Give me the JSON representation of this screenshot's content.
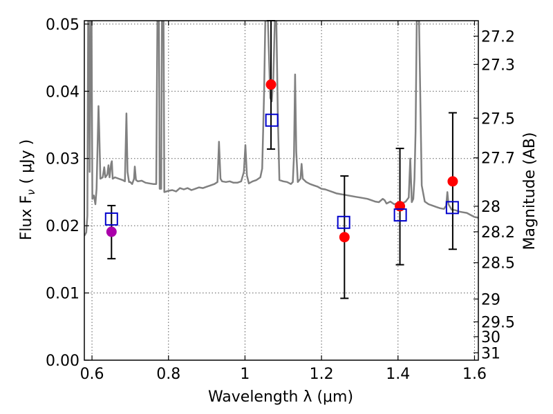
{
  "chart_data": {
    "type": "scatter",
    "xlabel": "Wavelength  λ (μm)",
    "ylabel": "Flux  F",
    "ylabel_sub": "ν",
    "ylabel_unit": "( μJy )",
    "y2label": "Magnitude (AB)",
    "xlim": [
      0.58,
      1.61
    ],
    "ylim": [
      0.0,
      0.0505
    ],
    "grid": true,
    "colors": {
      "spectrum": "#808080",
      "model_point": "#0000cc",
      "observed_point": "#ff0000",
      "first_observed_point": "#aa00aa",
      "errorbar": "#000000"
    },
    "x_ticks": [
      {
        "value": 0.6,
        "label": "0.6"
      },
      {
        "value": 0.8,
        "label": "0.8"
      },
      {
        "value": 1.0,
        "label": "1"
      },
      {
        "value": 1.2,
        "label": "1.2"
      },
      {
        "value": 1.4,
        "label": "1.4"
      },
      {
        "value": 1.6,
        "label": "1.6"
      }
    ],
    "y_ticks": [
      {
        "value": 0.0,
        "label": "0.00"
      },
      {
        "value": 0.01,
        "label": "0.01"
      },
      {
        "value": 0.02,
        "label": "0.02"
      },
      {
        "value": 0.03,
        "label": "0.03"
      },
      {
        "value": 0.04,
        "label": "0.04"
      },
      {
        "value": 0.05,
        "label": "0.05"
      }
    ],
    "y2_ticks": [
      {
        "label": "27.2",
        "flux": 0.0482
      },
      {
        "label": "27.3",
        "flux": 0.044
      },
      {
        "label": "27.5",
        "flux": 0.036
      },
      {
        "label": "27.7",
        "flux": 0.0301
      },
      {
        "label": "28",
        "flux": 0.0229
      },
      {
        "label": "28.2",
        "flux": 0.0191
      },
      {
        "label": "28.5",
        "flux": 0.0145
      },
      {
        "label": "29",
        "flux": 0.0091
      },
      {
        "label": "29.5",
        "flux": 0.0057
      },
      {
        "label": "30",
        "flux": 0.0035
      },
      {
        "label": "31",
        "flux": 0.0011
      }
    ],
    "model_points": [
      {
        "x": 0.651,
        "y": 0.021
      },
      {
        "x": 1.07,
        "y": 0.0357
      },
      {
        "x": 1.258,
        "y": 0.0205
      },
      {
        "x": 1.406,
        "y": 0.0216
      },
      {
        "x": 1.542,
        "y": 0.0227
      }
    ],
    "observed_points": [
      {
        "x": 0.651,
        "y": 0.0191,
        "err_low": 0.0151,
        "err_high": 0.023
      },
      {
        "x": 1.068,
        "y": 0.041,
        "err_low": 0.0314,
        "err_high": 0.0505
      },
      {
        "x": 1.26,
        "y": 0.0183,
        "err_low": 0.0092,
        "err_high": 0.0274
      },
      {
        "x": 1.405,
        "y": 0.0229,
        "err_low": 0.0142,
        "err_high": 0.0315
      },
      {
        "x": 1.543,
        "y": 0.0266,
        "err_low": 0.0165,
        "err_high": 0.0368
      }
    ],
    "spectrum": [
      [
        0.58,
        0.0185
      ],
      [
        0.585,
        0.019
      ],
      [
        0.588,
        0.0215
      ],
      [
        0.59,
        0.0505
      ],
      [
        0.592,
        0.0505
      ],
      [
        0.594,
        0.028
      ],
      [
        0.597,
        0.0505
      ],
      [
        0.599,
        0.0505
      ],
      [
        0.601,
        0.024
      ],
      [
        0.605,
        0.0245
      ],
      [
        0.609,
        0.0232
      ],
      [
        0.612,
        0.0255
      ],
      [
        0.615,
        0.033
      ],
      [
        0.617,
        0.0378
      ],
      [
        0.619,
        0.034
      ],
      [
        0.622,
        0.027
      ],
      [
        0.628,
        0.0272
      ],
      [
        0.632,
        0.0287
      ],
      [
        0.635,
        0.0272
      ],
      [
        0.64,
        0.0276
      ],
      [
        0.643,
        0.029
      ],
      [
        0.646,
        0.0272
      ],
      [
        0.65,
        0.0292
      ],
      [
        0.652,
        0.0296
      ],
      [
        0.654,
        0.027
      ],
      [
        0.66,
        0.0272
      ],
      [
        0.67,
        0.027
      ],
      [
        0.68,
        0.0268
      ],
      [
        0.686,
        0.0266
      ],
      [
        0.69,
        0.0367
      ],
      [
        0.693,
        0.028
      ],
      [
        0.697,
        0.0265
      ],
      [
        0.7,
        0.0265
      ],
      [
        0.705,
        0.0262
      ],
      [
        0.71,
        0.027
      ],
      [
        0.712,
        0.0288
      ],
      [
        0.715,
        0.0268
      ],
      [
        0.72,
        0.0266
      ],
      [
        0.73,
        0.0267
      ],
      [
        0.74,
        0.0264
      ],
      [
        0.75,
        0.0263
      ],
      [
        0.76,
        0.0262
      ],
      [
        0.768,
        0.0262
      ],
      [
        0.771,
        0.0505
      ],
      [
        0.775,
        0.0505
      ],
      [
        0.777,
        0.0255
      ],
      [
        0.781,
        0.0255
      ],
      [
        0.783,
        0.0505
      ],
      [
        0.787,
        0.0505
      ],
      [
        0.789,
        0.025
      ],
      [
        0.8,
        0.0252
      ],
      [
        0.81,
        0.0253
      ],
      [
        0.82,
        0.0251
      ],
      [
        0.83,
        0.0256
      ],
      [
        0.84,
        0.0254
      ],
      [
        0.85,
        0.0256
      ],
      [
        0.86,
        0.0253
      ],
      [
        0.87,
        0.0255
      ],
      [
        0.88,
        0.0257
      ],
      [
        0.89,
        0.0256
      ],
      [
        0.9,
        0.0258
      ],
      [
        0.91,
        0.026
      ],
      [
        0.92,
        0.0262
      ],
      [
        0.928,
        0.0265
      ],
      [
        0.932,
        0.0325
      ],
      [
        0.936,
        0.027
      ],
      [
        0.94,
        0.0266
      ],
      [
        0.95,
        0.0265
      ],
      [
        0.96,
        0.0266
      ],
      [
        0.97,
        0.0264
      ],
      [
        0.98,
        0.0264
      ],
      [
        0.99,
        0.0266
      ],
      [
        0.997,
        0.028
      ],
      [
        1.001,
        0.032
      ],
      [
        1.005,
        0.0275
      ],
      [
        1.01,
        0.0263
      ],
      [
        1.02,
        0.0266
      ],
      [
        1.03,
        0.0268
      ],
      [
        1.04,
        0.0272
      ],
      [
        1.045,
        0.0285
      ],
      [
        1.05,
        0.04
      ],
      [
        1.053,
        0.0505
      ],
      [
        1.06,
        0.0505
      ],
      [
        1.066,
        0.039
      ],
      [
        1.07,
        0.0385
      ],
      [
        1.074,
        0.042
      ],
      [
        1.078,
        0.0505
      ],
      [
        1.082,
        0.0505
      ],
      [
        1.086,
        0.036
      ],
      [
        1.09,
        0.0268
      ],
      [
        1.1,
        0.0266
      ],
      [
        1.11,
        0.0265
      ],
      [
        1.12,
        0.0262
      ],
      [
        1.125,
        0.0265
      ],
      [
        1.128,
        0.0305
      ],
      [
        1.131,
        0.0425
      ],
      [
        1.134,
        0.031
      ],
      [
        1.138,
        0.0265
      ],
      [
        1.145,
        0.027
      ],
      [
        1.148,
        0.0292
      ],
      [
        1.151,
        0.027
      ],
      [
        1.16,
        0.0265
      ],
      [
        1.17,
        0.0262
      ],
      [
        1.18,
        0.026
      ],
      [
        1.19,
        0.0258
      ],
      [
        1.2,
        0.0255
      ],
      [
        1.21,
        0.0254
      ],
      [
        1.22,
        0.0252
      ],
      [
        1.23,
        0.025
      ],
      [
        1.24,
        0.0248
      ],
      [
        1.25,
        0.0247
      ],
      [
        1.26,
        0.0246
      ],
      [
        1.27,
        0.0245
      ],
      [
        1.28,
        0.0244
      ],
      [
        1.29,
        0.0243
      ],
      [
        1.3,
        0.0242
      ],
      [
        1.31,
        0.0241
      ],
      [
        1.32,
        0.024
      ],
      [
        1.33,
        0.0238
      ],
      [
        1.34,
        0.0236
      ],
      [
        1.35,
        0.0235
      ],
      [
        1.36,
        0.024
      ],
      [
        1.365,
        0.0238
      ],
      [
        1.37,
        0.0233
      ],
      [
        1.38,
        0.0236
      ],
      [
        1.39,
        0.0232
      ],
      [
        1.4,
        0.0234
      ],
      [
        1.41,
        0.0233
      ],
      [
        1.42,
        0.0236
      ],
      [
        1.428,
        0.0242
      ],
      [
        1.432,
        0.03
      ],
      [
        1.436,
        0.0235
      ],
      [
        1.44,
        0.024
      ],
      [
        1.443,
        0.027
      ],
      [
        1.446,
        0.034
      ],
      [
        1.449,
        0.0505
      ],
      [
        1.455,
        0.0505
      ],
      [
        1.458,
        0.04
      ],
      [
        1.462,
        0.026
      ],
      [
        1.47,
        0.0236
      ],
      [
        1.48,
        0.0232
      ],
      [
        1.49,
        0.023
      ],
      [
        1.5,
        0.0228
      ],
      [
        1.51,
        0.0226
      ],
      [
        1.52,
        0.0225
      ],
      [
        1.526,
        0.023
      ],
      [
        1.529,
        0.025
      ],
      [
        1.532,
        0.0232
      ],
      [
        1.54,
        0.0224
      ],
      [
        1.55,
        0.0223
      ],
      [
        1.56,
        0.0221
      ],
      [
        1.57,
        0.022
      ],
      [
        1.58,
        0.0219
      ],
      [
        1.59,
        0.0216
      ],
      [
        1.6,
        0.0213
      ],
      [
        1.61,
        0.0212
      ]
    ]
  }
}
